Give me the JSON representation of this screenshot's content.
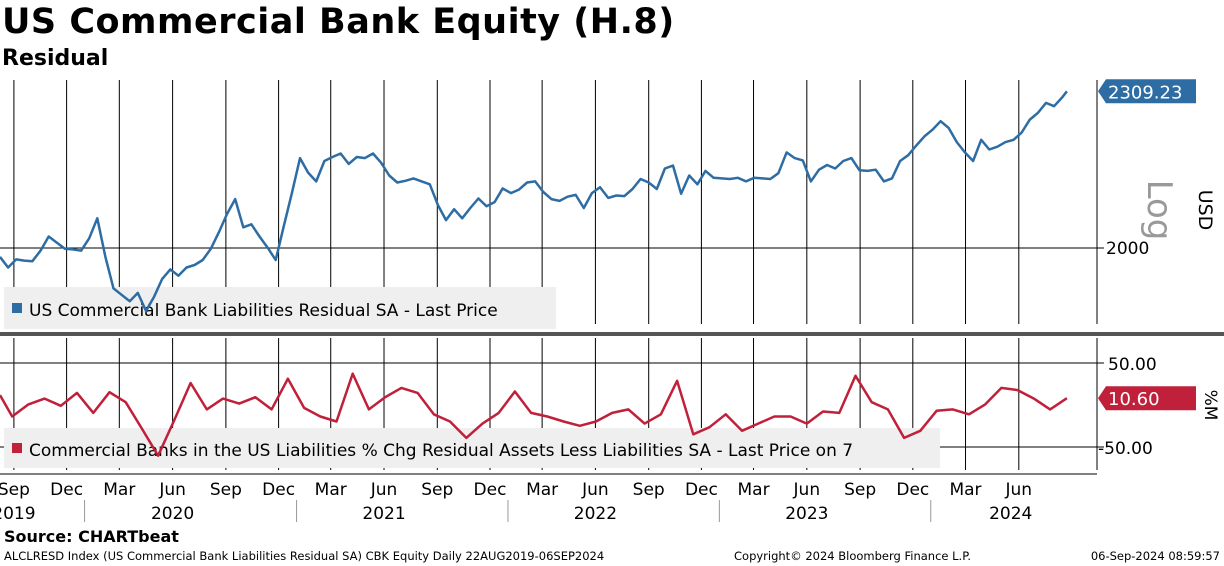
{
  "header": {
    "title": "US Commercial Bank Equity (H.8)",
    "subtitle": "Residual"
  },
  "footer": {
    "source": "Source: CHARTbeat",
    "left": "ALCLRESD Index (US Commercial Bank Liabilities Residual SA) CBK Equity  Daily 22AUG2019-06SEP2024",
    "center": "Copyright© 2024 Bloomberg Finance L.P.",
    "right": "06-Sep-2024 08:59:57"
  },
  "colors": {
    "upper_series": "#2e6da4",
    "lower_series": "#c0203a",
    "gridline": "#000000",
    "panel_divider": "#555555"
  },
  "chart_data": [
    {
      "type": "line",
      "panel": "upper",
      "series": [
        {
          "name": "US Commercial Bank Liabilities Residual SA - Last Price",
          "x": [
            "2019-08-22",
            "2019-09-05",
            "2019-09-19",
            "2019-10-03",
            "2019-10-17",
            "2019-10-31",
            "2019-11-14",
            "2019-11-28",
            "2019-12-12",
            "2019-12-26",
            "2020-01-09",
            "2020-01-23",
            "2020-02-06",
            "2020-02-20",
            "2020-03-05",
            "2020-03-19",
            "2020-04-02",
            "2020-04-16",
            "2020-04-30",
            "2020-05-14",
            "2020-05-28",
            "2020-06-11",
            "2020-06-25",
            "2020-07-09",
            "2020-07-23",
            "2020-08-06",
            "2020-08-20",
            "2020-09-03",
            "2020-09-17",
            "2020-10-01",
            "2020-10-15",
            "2020-10-29",
            "2020-11-12",
            "2020-11-26",
            "2020-12-10",
            "2020-12-24",
            "2021-01-07",
            "2021-01-21",
            "2021-02-04",
            "2021-02-18",
            "2021-03-04",
            "2021-03-18",
            "2021-04-01",
            "2021-04-15",
            "2021-04-29",
            "2021-05-13",
            "2021-05-27",
            "2021-06-10",
            "2021-06-24",
            "2021-07-08",
            "2021-07-22",
            "2021-08-05",
            "2021-08-19",
            "2021-09-02",
            "2021-09-16",
            "2021-09-30",
            "2021-10-14",
            "2021-10-28",
            "2021-11-11",
            "2021-11-25",
            "2021-12-09",
            "2021-12-23",
            "2022-01-06",
            "2022-01-20",
            "2022-02-03",
            "2022-02-17",
            "2022-03-03",
            "2022-03-17",
            "2022-03-31",
            "2022-04-14",
            "2022-04-28",
            "2022-05-12",
            "2022-05-26",
            "2022-06-09",
            "2022-06-23",
            "2022-07-07",
            "2022-07-21",
            "2022-08-04",
            "2022-08-18",
            "2022-09-01",
            "2022-09-15",
            "2022-09-29",
            "2022-10-13",
            "2022-10-27",
            "2022-11-10",
            "2022-11-24",
            "2022-12-08",
            "2022-12-22",
            "2023-01-05",
            "2023-01-19",
            "2023-02-02",
            "2023-02-16",
            "2023-03-02",
            "2023-03-16",
            "2023-03-30",
            "2023-04-13",
            "2023-04-27",
            "2023-05-11",
            "2023-05-25",
            "2023-06-08",
            "2023-06-22",
            "2023-07-06",
            "2023-07-20",
            "2023-08-03",
            "2023-08-17",
            "2023-08-31",
            "2023-09-14",
            "2023-09-28",
            "2023-10-12",
            "2023-10-26",
            "2023-11-09",
            "2023-11-23",
            "2023-12-07",
            "2023-12-21",
            "2024-01-04",
            "2024-01-18",
            "2024-02-01",
            "2024-02-15",
            "2024-02-29",
            "2024-03-14",
            "2024-03-28",
            "2024-04-11",
            "2024-04-25",
            "2024-05-09",
            "2024-05-23",
            "2024-06-06",
            "2024-06-20",
            "2024-07-04",
            "2024-07-18",
            "2024-08-01",
            "2024-08-15",
            "2024-08-29",
            "2024-09-06"
          ],
          "values": [
            2025,
            2008,
            2021,
            2019,
            2018,
            2035,
            2058,
            2048,
            2038,
            2037,
            2035,
            2055,
            2088,
            2025,
            1975,
            1965,
            1955,
            1968,
            1940,
            1962,
            1990,
            2005,
            1995,
            2008,
            2012,
            2020,
            2038,
            2065,
            2095,
            2120,
            2073,
            2078,
            2058,
            2040,
            2020,
            2075,
            2130,
            2190,
            2165,
            2150,
            2185,
            2192,
            2198,
            2180,
            2192,
            2190,
            2198,
            2182,
            2160,
            2148,
            2151,
            2155,
            2150,
            2145,
            2110,
            2085,
            2103,
            2088,
            2105,
            2121,
            2108,
            2115,
            2138,
            2130,
            2136,
            2148,
            2150,
            2132,
            2120,
            2117,
            2124,
            2127,
            2105,
            2130,
            2140,
            2122,
            2126,
            2125,
            2137,
            2154,
            2148,
            2137,
            2172,
            2177,
            2129,
            2160,
            2145,
            2168,
            2156,
            2155,
            2154,
            2156,
            2150,
            2156,
            2155,
            2154,
            2164,
            2200,
            2190,
            2186,
            2150,
            2170,
            2178,
            2172,
            2185,
            2190,
            2169,
            2168,
            2170,
            2150,
            2155,
            2185,
            2195,
            2212,
            2228,
            2240,
            2255,
            2243,
            2218,
            2200,
            2185,
            2222,
            2205,
            2210,
            2218,
            2222,
            2235,
            2258,
            2270,
            2288,
            2282,
            2298,
            2309.23
          ],
          "last_label": "2309.23"
        }
      ],
      "ylabel": "USD",
      "scale_label": "Log",
      "yticks": [
        2000
      ],
      "ylim": [
        1920,
        2330
      ]
    },
    {
      "type": "line",
      "panel": "lower",
      "series": [
        {
          "name": "Commercial Banks in the US Liabilities % Chg Residual Assets Less Liabilities SA - Last Price on 7",
          "x": [
            "2019-08-22",
            "2019-09-12",
            "2019-10-10",
            "2019-11-07",
            "2019-12-05",
            "2020-01-02",
            "2020-01-30",
            "2020-02-27",
            "2020-03-26",
            "2020-04-23",
            "2020-05-21",
            "2020-06-18",
            "2020-07-16",
            "2020-08-13",
            "2020-09-10",
            "2020-10-08",
            "2020-11-05",
            "2020-12-03",
            "2020-12-31",
            "2021-01-28",
            "2021-02-25",
            "2021-03-25",
            "2021-04-22",
            "2021-05-20",
            "2021-06-17",
            "2021-07-15",
            "2021-08-12",
            "2021-09-09",
            "2021-10-07",
            "2021-11-04",
            "2021-12-02",
            "2021-12-30",
            "2022-01-27",
            "2022-02-24",
            "2022-03-24",
            "2022-04-21",
            "2022-05-19",
            "2022-06-16",
            "2022-07-14",
            "2022-08-11",
            "2022-09-08",
            "2022-10-06",
            "2022-11-03",
            "2022-12-01",
            "2022-12-29",
            "2023-01-26",
            "2023-02-23",
            "2023-03-23",
            "2023-04-20",
            "2023-05-18",
            "2023-06-15",
            "2023-07-13",
            "2023-08-10",
            "2023-09-07",
            "2023-10-05",
            "2023-11-02",
            "2023-11-30",
            "2023-12-28",
            "2024-01-25",
            "2024-02-22",
            "2024-03-21",
            "2024-04-18",
            "2024-05-16",
            "2024-06-13",
            "2024-07-11",
            "2024-08-08",
            "2024-09-06"
          ],
          "values": [
            15,
            -15,
            2,
            10,
            0,
            18,
            -10,
            19,
            5,
            -32,
            -70,
            -20,
            32,
            -5,
            10,
            3,
            12,
            -5,
            38,
            -3,
            -15,
            -22,
            45,
            -5,
            12,
            25,
            18,
            -12,
            -22,
            -45,
            -25,
            -10,
            20,
            -10,
            -15,
            -22,
            -28,
            -22,
            -10,
            -5,
            -25,
            -12,
            35,
            -40,
            -30,
            -12,
            -35,
            -25,
            -15,
            -15,
            -25,
            -8,
            -10,
            42,
            5,
            -5,
            -45,
            -35,
            -7,
            -5,
            -12,
            2,
            25,
            22,
            10,
            -5,
            10.6
          ],
          "last_label": "10.60"
        }
      ],
      "ylabel": "%M",
      "yticks": [
        "50.00",
        "-50.00"
      ],
      "ylim": [
        -90,
        95
      ]
    }
  ],
  "x_axis": {
    "months": [
      "Sep",
      "Dec",
      "Mar",
      "Jun",
      "Sep",
      "Dec",
      "Mar",
      "Jun",
      "Sep",
      "Dec",
      "Mar",
      "Jun",
      "Sep",
      "Dec",
      "Mar",
      "Jun",
      "Sep",
      "Dec",
      "Mar",
      "Jun"
    ],
    "month_dates": [
      "2019-09-15",
      "2019-12-15",
      "2020-03-15",
      "2020-06-15",
      "2020-09-15",
      "2020-12-15",
      "2021-03-15",
      "2021-06-15",
      "2021-09-15",
      "2021-12-15",
      "2022-03-15",
      "2022-06-15",
      "2022-09-15",
      "2022-12-15",
      "2023-03-15",
      "2023-06-15",
      "2023-09-15",
      "2023-12-15",
      "2024-03-15",
      "2024-06-15"
    ],
    "years": [
      "2019",
      "2020",
      "2021",
      "2022",
      "2023",
      "2024"
    ],
    "year_dates": [
      "2019-09-15",
      "2020-06-15",
      "2021-06-15",
      "2022-06-15",
      "2023-06-15",
      "2024-06-01"
    ],
    "year_dividers": [
      "2020-01-15",
      "2021-01-15",
      "2022-01-15",
      "2023-01-15",
      "2024-01-15"
    ],
    "start": "2019-08-22",
    "end": "2024-10-28"
  }
}
